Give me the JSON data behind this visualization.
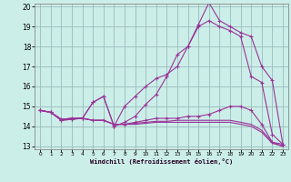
{
  "xlabel": "Windchill (Refroidissement éolien,°C)",
  "bg_color": "#cceee8",
  "line_color": "#993399",
  "grid_color": "#99bbbb",
  "xmin": 0,
  "xmax": 23,
  "ymin": 13,
  "ymax": 20,
  "yticks": [
    13,
    14,
    15,
    16,
    17,
    18,
    19,
    20
  ],
  "xticks": [
    0,
    1,
    2,
    3,
    4,
    5,
    6,
    7,
    8,
    9,
    10,
    11,
    12,
    13,
    14,
    15,
    16,
    17,
    18,
    19,
    20,
    21,
    22,
    23
  ],
  "windchill_line": [
    14.8,
    14.7,
    14.3,
    14.35,
    14.4,
    15.2,
    15.5,
    14.0,
    15.0,
    15.5,
    16.0,
    16.4,
    16.6,
    17.0,
    18.0,
    19.1,
    20.2,
    19.3,
    19.0,
    18.7,
    18.5,
    17.0,
    16.3,
    13.1
  ],
  "temp_line": [
    14.8,
    14.7,
    14.3,
    14.35,
    14.4,
    15.2,
    15.5,
    14.0,
    14.2,
    14.5,
    15.1,
    15.6,
    16.5,
    17.6,
    18.0,
    19.0,
    19.3,
    19.0,
    18.8,
    18.5,
    16.5,
    16.2,
    13.6,
    13.1
  ],
  "flat_line1": [
    14.8,
    14.7,
    14.35,
    14.4,
    14.4,
    14.3,
    14.3,
    14.1,
    14.1,
    14.2,
    14.3,
    14.4,
    14.4,
    14.4,
    14.5,
    14.5,
    14.6,
    14.8,
    15.0,
    15.0,
    14.8,
    14.1,
    13.2,
    13.1
  ],
  "flat_line2": [
    14.8,
    14.7,
    14.35,
    14.4,
    14.4,
    14.3,
    14.3,
    14.1,
    14.1,
    14.15,
    14.2,
    14.25,
    14.25,
    14.3,
    14.3,
    14.3,
    14.3,
    14.3,
    14.3,
    14.2,
    14.1,
    13.8,
    13.2,
    13.0
  ],
  "flat_line3": [
    14.8,
    14.7,
    14.35,
    14.4,
    14.4,
    14.3,
    14.3,
    14.1,
    14.1,
    14.1,
    14.15,
    14.2,
    14.2,
    14.2,
    14.2,
    14.2,
    14.2,
    14.2,
    14.2,
    14.1,
    14.0,
    13.7,
    13.15,
    13.0
  ]
}
